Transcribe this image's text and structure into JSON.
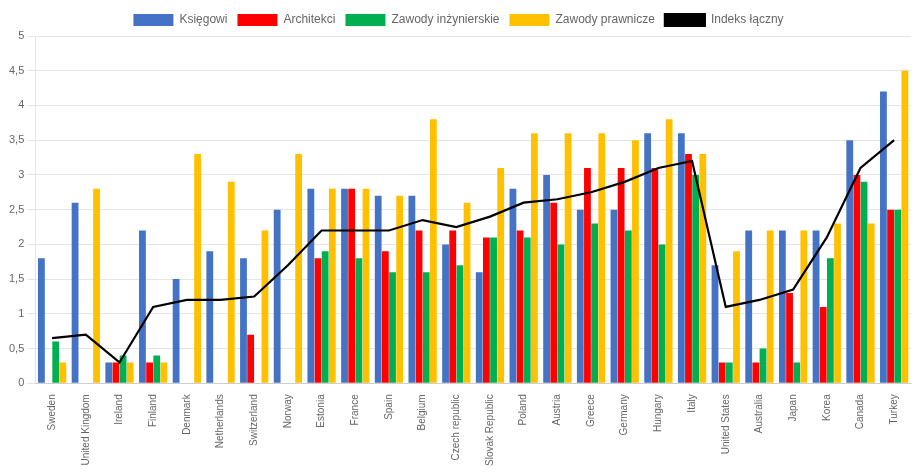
{
  "chart_data": {
    "type": "bar",
    "categories": [
      "Sweden",
      "United Kingdom",
      "Ireland",
      "Finland",
      "Denmark",
      "Netherlands",
      "Switzerland",
      "Norway",
      "Estonia",
      "France",
      "Spain",
      "Belgium",
      "Czech republic",
      "Slovak Republic",
      "Poland",
      "Austria",
      "Greece",
      "Germany",
      "Hungary",
      "Italy",
      "United States",
      "Australia",
      "Japan",
      "Korea",
      "Canada",
      "Turkey"
    ],
    "series": [
      {
        "name": "Księgowi",
        "type": "bar",
        "color": "#4472c4",
        "values": [
          1.8,
          2.6,
          0.3,
          2.2,
          1.5,
          1.9,
          1.8,
          2.5,
          2.8,
          2.8,
          2.7,
          2.7,
          2.0,
          1.6,
          2.8,
          3.0,
          2.5,
          2.5,
          3.6,
          3.6,
          1.7,
          2.2,
          2.2,
          2.2,
          3.5,
          4.2
        ]
      },
      {
        "name": "Architekci",
        "type": "bar",
        "color": "#ff0000",
        "values": [
          0.0,
          0.0,
          0.3,
          0.3,
          0.0,
          0.0,
          0.7,
          0.0,
          1.8,
          2.8,
          1.9,
          2.2,
          2.2,
          2.1,
          2.2,
          2.6,
          3.1,
          3.1,
          3.1,
          3.3,
          0.3,
          0.3,
          1.3,
          1.1,
          3.0,
          2.5
        ]
      },
      {
        "name": "Zawody inżynierskie",
        "type": "bar",
        "color": "#00b050",
        "values": [
          0.6,
          0.0,
          0.4,
          0.4,
          0.0,
          0.0,
          0.0,
          0.0,
          1.9,
          1.8,
          1.6,
          1.6,
          1.7,
          2.1,
          2.1,
          2.0,
          2.3,
          2.2,
          2.0,
          3.0,
          0.3,
          0.5,
          0.3,
          1.8,
          2.9,
          2.5
        ]
      },
      {
        "name": "Zawody prawnicze",
        "type": "bar",
        "color": "#ffc000",
        "values": [
          0.3,
          2.8,
          0.3,
          0.3,
          3.3,
          2.9,
          2.2,
          3.3,
          2.8,
          2.8,
          2.7,
          3.8,
          2.6,
          3.1,
          3.6,
          3.6,
          3.6,
          3.5,
          3.8,
          3.3,
          1.9,
          2.2,
          2.2,
          2.3,
          2.3,
          4.5
        ]
      },
      {
        "name": "Indeks łączny",
        "type": "line",
        "color": "#000000",
        "values": [
          0.65,
          0.7,
          0.3,
          1.1,
          1.2,
          1.2,
          1.25,
          1.7,
          2.2,
          2.2,
          2.2,
          2.35,
          2.25,
          2.4,
          2.6,
          2.65,
          2.75,
          2.9,
          3.1,
          3.2,
          1.1,
          1.2,
          1.35,
          2.1,
          3.1,
          3.5
        ]
      }
    ],
    "ylim": [
      0,
      5
    ],
    "yticks": [
      0,
      {
        "value": 0.5,
        "label": "0,5"
      },
      1,
      {
        "value": 1.5,
        "label": "1,5"
      },
      2,
      {
        "value": 2.5,
        "label": "2,5"
      },
      3,
      {
        "value": 3.5,
        "label": "3,5"
      },
      4,
      {
        "value": 4.5,
        "label": "4,5"
      },
      5
    ],
    "grid": true,
    "legend": "top"
  }
}
